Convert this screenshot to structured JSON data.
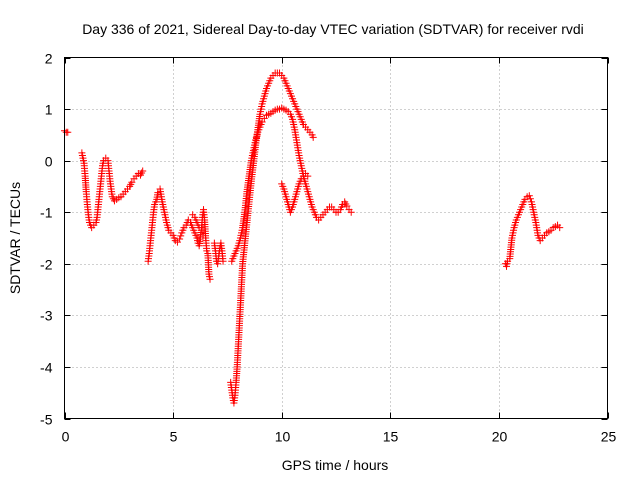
{
  "chart_data": {
    "type": "scatter",
    "title": "Day 336 of 2021, Sidereal Day-to-day VTEC variation (SDTVAR) for receiver rvdi",
    "xlabel": "GPS time / hours",
    "ylabel": "SDTVAR / TECUs",
    "xlim": [
      0,
      25
    ],
    "ylim": [
      -5,
      2
    ],
    "xticks": [
      0,
      5,
      10,
      15,
      20,
      25
    ],
    "yticks": [
      -5,
      -4,
      -3,
      -2,
      -1,
      0,
      1,
      2
    ],
    "grid": true,
    "marker": "+",
    "color": "#ff0000",
    "series": [
      {
        "name": "rvdi",
        "segments": [
          [
            [
              0.0,
              0.58
            ],
            [
              0.08,
              0.55
            ],
            [
              0.15,
              0.55
            ]
          ],
          [
            [
              0.8,
              0.15
            ],
            [
              0.85,
              0.05
            ],
            [
              0.9,
              -0.05
            ],
            [
              0.95,
              -0.3
            ],
            [
              1.0,
              -0.6
            ],
            [
              1.05,
              -0.85
            ],
            [
              1.1,
              -1.05
            ],
            [
              1.15,
              -1.2
            ],
            [
              1.25,
              -1.3
            ],
            [
              1.35,
              -1.25
            ],
            [
              1.45,
              -1.2
            ],
            [
              1.5,
              -1.1
            ],
            [
              1.55,
              -0.9
            ],
            [
              1.6,
              -0.7
            ],
            [
              1.65,
              -0.5
            ],
            [
              1.7,
              -0.3
            ],
            [
              1.75,
              -0.1
            ],
            [
              1.8,
              0.0
            ],
            [
              1.9,
              0.05
            ],
            [
              2.0,
              0.0
            ],
            [
              2.05,
              -0.2
            ],
            [
              2.1,
              -0.4
            ],
            [
              2.15,
              -0.55
            ],
            [
              2.2,
              -0.7
            ],
            [
              2.3,
              -0.78
            ],
            [
              2.4,
              -0.75
            ],
            [
              2.5,
              -0.72
            ],
            [
              2.6,
              -0.7
            ],
            [
              2.7,
              -0.65
            ],
            [
              2.8,
              -0.6
            ],
            [
              2.9,
              -0.55
            ],
            [
              3.0,
              -0.5
            ],
            [
              3.1,
              -0.42
            ],
            [
              3.2,
              -0.35
            ],
            [
              3.3,
              -0.3
            ],
            [
              3.4,
              -0.25
            ],
            [
              3.5,
              -0.28
            ],
            [
              3.6,
              -0.2
            ]
          ],
          [
            [
              3.85,
              -1.95
            ],
            [
              3.9,
              -1.8
            ],
            [
              3.95,
              -1.6
            ],
            [
              4.0,
              -1.4
            ],
            [
              4.05,
              -1.2
            ],
            [
              4.1,
              -1.0
            ],
            [
              4.15,
              -0.85
            ],
            [
              4.25,
              -0.75
            ],
            [
              4.3,
              -0.62
            ],
            [
              4.4,
              -0.55
            ],
            [
              4.5,
              -0.8
            ],
            [
              4.6,
              -1.0
            ],
            [
              4.7,
              -1.2
            ],
            [
              4.8,
              -1.35
            ],
            [
              4.9,
              -1.4
            ],
            [
              5.0,
              -1.45
            ],
            [
              5.1,
              -1.55
            ],
            [
              5.2,
              -1.58
            ],
            [
              5.3,
              -1.52
            ],
            [
              5.4,
              -1.4
            ],
            [
              5.5,
              -1.3
            ],
            [
              5.6,
              -1.25
            ],
            [
              5.7,
              -1.15
            ],
            [
              5.8,
              -1.2
            ],
            [
              5.9,
              -1.3
            ],
            [
              6.0,
              -1.4
            ],
            [
              6.1,
              -1.5
            ],
            [
              6.15,
              -1.6
            ],
            [
              6.2,
              -1.65
            ],
            [
              6.3,
              -1.35
            ],
            [
              6.35,
              -1.1
            ],
            [
              6.4,
              -0.95
            ],
            [
              6.45,
              -1.15
            ],
            [
              6.5,
              -1.5
            ],
            [
              6.55,
              -1.75
            ],
            [
              6.6,
              -1.8
            ],
            [
              6.65,
              -2.2
            ],
            [
              6.7,
              -2.3
            ]
          ],
          [
            [
              5.9,
              -1.05
            ],
            [
              6.0,
              -1.1
            ],
            [
              6.1,
              -1.2
            ],
            [
              6.2,
              -1.3
            ]
          ],
          [
            [
              6.9,
              -1.6
            ],
            [
              6.95,
              -1.75
            ],
            [
              7.0,
              -1.95
            ],
            [
              7.05,
              -2.0
            ],
            [
              7.1,
              -1.85
            ],
            [
              7.15,
              -1.7
            ],
            [
              7.2,
              -1.6
            ],
            [
              7.25,
              -1.75
            ],
            [
              7.3,
              -1.95
            ]
          ],
          [
            [
              7.65,
              -4.3
            ],
            [
              7.7,
              -4.45
            ],
            [
              7.75,
              -4.6
            ],
            [
              7.8,
              -4.7
            ],
            [
              7.85,
              -4.55
            ],
            [
              7.9,
              -4.3
            ],
            [
              7.95,
              -4.0
            ],
            [
              8.0,
              -3.6
            ],
            [
              8.05,
              -3.2
            ],
            [
              8.1,
              -2.8
            ],
            [
              8.15,
              -2.4
            ],
            [
              8.2,
              -2.0
            ],
            [
              8.3,
              -1.6
            ],
            [
              8.4,
              -1.2
            ],
            [
              8.5,
              -0.8
            ],
            [
              8.6,
              -0.4
            ],
            [
              8.7,
              -0.05
            ],
            [
              8.8,
              0.3
            ],
            [
              8.9,
              0.6
            ],
            [
              9.0,
              0.9
            ],
            [
              9.1,
              1.1
            ],
            [
              9.2,
              1.25
            ],
            [
              9.3,
              1.4
            ],
            [
              9.4,
              1.5
            ],
            [
              9.5,
              1.6
            ],
            [
              9.6,
              1.65
            ],
            [
              9.7,
              1.7
            ],
            [
              9.8,
              1.7
            ],
            [
              9.9,
              1.7
            ],
            [
              10.0,
              1.65
            ],
            [
              10.1,
              1.6
            ],
            [
              10.2,
              1.5
            ],
            [
              10.3,
              1.4
            ],
            [
              10.4,
              1.3
            ],
            [
              10.5,
              1.2
            ],
            [
              10.6,
              1.1
            ],
            [
              10.7,
              1.0
            ],
            [
              10.8,
              0.9
            ],
            [
              10.9,
              0.8
            ],
            [
              11.0,
              0.7
            ],
            [
              11.1,
              0.65
            ],
            [
              11.2,
              0.6
            ],
            [
              11.3,
              0.55
            ],
            [
              11.4,
              0.5
            ],
            [
              11.45,
              0.45
            ]
          ],
          [
            [
              7.7,
              -1.95
            ],
            [
              7.8,
              -1.85
            ],
            [
              7.9,
              -1.75
            ],
            [
              8.0,
              -1.65
            ],
            [
              8.1,
              -1.5
            ],
            [
              8.2,
              -1.3
            ],
            [
              8.3,
              -1.0
            ],
            [
              8.4,
              -0.6
            ],
            [
              8.5,
              -0.3
            ],
            [
              8.6,
              0.0
            ],
            [
              8.7,
              0.2
            ],
            [
              8.8,
              0.4
            ],
            [
              8.9,
              0.55
            ],
            [
              9.0,
              0.65
            ],
            [
              9.1,
              0.75
            ],
            [
              9.2,
              0.82
            ],
            [
              9.3,
              0.88
            ],
            [
              9.4,
              0.9
            ],
            [
              9.5,
              0.92
            ],
            [
              9.6,
              0.95
            ],
            [
              9.7,
              0.98
            ],
            [
              9.8,
              1.0
            ],
            [
              9.9,
              1.0
            ],
            [
              10.0,
              1.02
            ],
            [
              10.1,
              1.0
            ],
            [
              10.2,
              0.98
            ],
            [
              10.3,
              0.95
            ],
            [
              10.4,
              0.9
            ],
            [
              10.5,
              0.8
            ],
            [
              10.6,
              0.6
            ],
            [
              10.7,
              0.35
            ],
            [
              10.8,
              0.1
            ],
            [
              10.9,
              -0.1
            ],
            [
              11.0,
              -0.3
            ],
            [
              11.1,
              -0.45
            ],
            [
              11.2,
              -0.6
            ],
            [
              11.3,
              -0.75
            ],
            [
              11.4,
              -0.9
            ],
            [
              11.5,
              -1.0
            ],
            [
              11.6,
              -1.1
            ],
            [
              11.7,
              -1.15
            ],
            [
              11.8,
              -1.1
            ],
            [
              11.9,
              -1.05
            ],
            [
              12.0,
              -1.0
            ],
            [
              12.1,
              -0.95
            ],
            [
              12.2,
              -0.9
            ],
            [
              12.3,
              -0.9
            ],
            [
              12.4,
              -0.95
            ],
            [
              12.5,
              -1.0
            ],
            [
              12.6,
              -1.0
            ],
            [
              12.7,
              -0.95
            ],
            [
              12.8,
              -0.85
            ],
            [
              12.9,
              -0.8
            ],
            [
              13.0,
              -0.88
            ],
            [
              13.1,
              -0.95
            ],
            [
              13.2,
              -1.0
            ]
          ],
          [
            [
              10.0,
              -0.45
            ],
            [
              10.1,
              -0.55
            ],
            [
              10.2,
              -0.7
            ],
            [
              10.3,
              -0.85
            ],
            [
              10.4,
              -1.0
            ],
            [
              10.5,
              -0.9
            ],
            [
              10.6,
              -0.75
            ],
            [
              10.7,
              -0.6
            ],
            [
              10.8,
              -0.45
            ],
            [
              10.9,
              -0.35
            ],
            [
              11.0,
              -0.3
            ],
            [
              11.1,
              -0.25
            ],
            [
              11.2,
              -0.3
            ]
          ],
          [
            [
              20.3,
              -2.0
            ],
            [
              20.35,
              -2.05
            ],
            [
              20.4,
              -1.95
            ],
            [
              20.5,
              -1.9
            ],
            [
              20.6,
              -1.5
            ],
            [
              20.7,
              -1.3
            ],
            [
              20.8,
              -1.15
            ],
            [
              20.9,
              -1.05
            ],
            [
              21.0,
              -0.95
            ],
            [
              21.1,
              -0.85
            ],
            [
              21.2,
              -0.75
            ],
            [
              21.3,
              -0.7
            ],
            [
              21.4,
              -0.68
            ],
            [
              21.5,
              -0.8
            ],
            [
              21.6,
              -1.0
            ],
            [
              21.7,
              -1.2
            ],
            [
              21.8,
              -1.45
            ],
            [
              21.9,
              -1.55
            ],
            [
              22.0,
              -1.5
            ],
            [
              22.1,
              -1.45
            ],
            [
              22.2,
              -1.4
            ],
            [
              22.3,
              -1.38
            ],
            [
              22.4,
              -1.35
            ],
            [
              22.5,
              -1.3
            ],
            [
              22.6,
              -1.28
            ],
            [
              22.7,
              -1.25
            ],
            [
              22.8,
              -1.3
            ]
          ]
        ]
      }
    ]
  }
}
